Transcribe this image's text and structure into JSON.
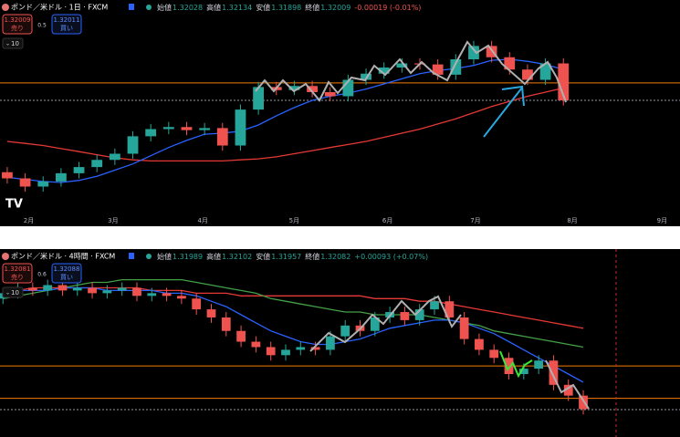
{
  "chart_data": [
    {
      "type": "candlestick",
      "title": "ポンド／米ドル · 1日 · FXCM",
      "quote": [
        {
          "label": "始値",
          "value": "1.32028"
        },
        {
          "label": "高値",
          "value": "1.32134"
        },
        {
          "label": "安値",
          "value": "1.31898"
        },
        {
          "label": "終値",
          "value": "1.32009"
        }
      ],
      "change": "-0.00019 (-0.01%)",
      "quote_color": "#26a69a",
      "change_color": "#ef5350",
      "sell": {
        "price": "1.32009",
        "label": "売り"
      },
      "spread": "0.5",
      "buy": {
        "price": "1.32011",
        "label": "買い"
      },
      "quantity": "10",
      "open": [
        1.25,
        1.244,
        1.236,
        1.241,
        1.249,
        1.255,
        1.262,
        1.268,
        1.285,
        1.292,
        1.294,
        1.291,
        1.293,
        1.276,
        1.311,
        1.333,
        1.33,
        1.334,
        1.328,
        1.324,
        1.34,
        1.346,
        1.352,
        1.356,
        1.355,
        1.345,
        1.36,
        1.373,
        1.362,
        1.35,
        1.34,
        1.356
      ],
      "high": [
        1.255,
        1.249,
        1.246,
        1.254,
        1.26,
        1.267,
        1.273,
        1.29,
        1.297,
        1.299,
        1.299,
        1.298,
        1.298,
        1.316,
        1.338,
        1.338,
        1.339,
        1.339,
        1.333,
        1.345,
        1.351,
        1.357,
        1.361,
        1.361,
        1.36,
        1.365,
        1.378,
        1.378,
        1.367,
        1.355,
        1.361,
        1.361
      ],
      "low": [
        1.239,
        1.231,
        1.231,
        1.236,
        1.244,
        1.25,
        1.257,
        1.263,
        1.28,
        1.287,
        1.286,
        1.286,
        1.271,
        1.271,
        1.306,
        1.325,
        1.325,
        1.323,
        1.319,
        1.319,
        1.335,
        1.341,
        1.347,
        1.35,
        1.34,
        1.34,
        1.355,
        1.357,
        1.345,
        1.335,
        1.335,
        1.315
      ],
      "close": [
        1.244,
        1.236,
        1.241,
        1.249,
        1.255,
        1.262,
        1.268,
        1.285,
        1.292,
        1.294,
        1.291,
        1.293,
        1.276,
        1.311,
        1.333,
        1.33,
        1.334,
        1.328,
        1.324,
        1.34,
        1.346,
        1.352,
        1.356,
        1.355,
        1.345,
        1.36,
        1.373,
        1.362,
        1.35,
        1.34,
        1.356,
        1.32
      ],
      "up_color": "#26a69a",
      "down_color": "#ef5350",
      "lines": [
        {
          "color": "#e53935",
          "values": [
            1.28,
            1.278,
            1.276,
            1.273,
            1.27,
            1.267,
            1.264,
            1.262,
            1.261,
            1.261,
            1.261,
            1.261,
            1.261,
            1.262,
            1.263,
            1.265,
            1.268,
            1.271,
            1.274,
            1.277,
            1.28,
            1.284,
            1.288,
            1.292,
            1.297,
            1.302,
            1.308,
            1.314,
            1.319,
            1.324,
            1.328,
            1.332
          ]
        },
        {
          "color": "#2962ff",
          "values": [
            1.245,
            1.243,
            1.241,
            1.24,
            1.242,
            1.246,
            1.252,
            1.258,
            1.266,
            1.274,
            1.281,
            1.287,
            1.288,
            1.29,
            1.296,
            1.305,
            1.313,
            1.32,
            1.324,
            1.327,
            1.331,
            1.336,
            1.341,
            1.346,
            1.349,
            1.351,
            1.354,
            1.359,
            1.36,
            1.358,
            1.355,
            1.35
          ]
        }
      ],
      "hlines": [
        {
          "value": 1.337,
          "color": "#f57c00",
          "style": "solid"
        },
        {
          "value": 1.32,
          "color": "#9598a1",
          "style": "dotted"
        }
      ],
      "xlim": [
        -0.2,
        37.5
      ],
      "ylim": [
        1.2,
        1.4
      ],
      "xticks": [
        {
          "value": 1.2,
          "label": "2月"
        },
        {
          "value": 5.9,
          "label": "3月"
        },
        {
          "value": 10.9,
          "label": "4月"
        },
        {
          "value": 16.0,
          "label": "5月"
        },
        {
          "value": 21.2,
          "label": "6月"
        },
        {
          "value": 26.1,
          "label": "7月"
        },
        {
          "value": 31.5,
          "label": "8月"
        },
        {
          "value": 36.5,
          "label": "9月"
        }
      ]
    },
    {
      "type": "candlestick",
      "title": "ポンド／米ドル · 4時間 · FXCM",
      "quote": [
        {
          "label": "始値",
          "value": "1.31989"
        },
        {
          "label": "高値",
          "value": "1.32102"
        },
        {
          "label": "安値",
          "value": "1.31957"
        },
        {
          "label": "終値",
          "value": "1.32082"
        }
      ],
      "change": "+0.00093 (+0.07%)",
      "quote_color": "#26a69a",
      "change_color": "#26a69a",
      "sell": {
        "price": "1.32081",
        "label": "売り"
      },
      "spread": "0.6",
      "buy": {
        "price": "1.32088",
        "label": "買い"
      },
      "quantity": "10",
      "open": [
        1.362,
        1.364,
        1.366,
        1.365,
        1.367,
        1.365,
        1.366,
        1.364,
        1.365,
        1.366,
        1.363,
        1.364,
        1.363,
        1.362,
        1.358,
        1.355,
        1.35,
        1.346,
        1.344,
        1.341,
        1.343,
        1.344,
        1.343,
        1.348,
        1.352,
        1.35,
        1.355,
        1.357,
        1.354,
        1.358,
        1.361,
        1.355,
        1.347,
        1.343,
        1.34,
        1.334,
        1.336,
        1.339,
        1.33,
        1.326
      ],
      "high": [
        1.366,
        1.368,
        1.368,
        1.369,
        1.369,
        1.368,
        1.368,
        1.367,
        1.368,
        1.368,
        1.366,
        1.366,
        1.365,
        1.364,
        1.36,
        1.357,
        1.352,
        1.348,
        1.346,
        1.345,
        1.346,
        1.346,
        1.35,
        1.354,
        1.354,
        1.357,
        1.359,
        1.359,
        1.36,
        1.363,
        1.363,
        1.357,
        1.349,
        1.345,
        1.342,
        1.338,
        1.341,
        1.341,
        1.332,
        1.328
      ],
      "low": [
        1.36,
        1.362,
        1.363,
        1.363,
        1.363,
        1.363,
        1.362,
        1.362,
        1.363,
        1.361,
        1.361,
        1.361,
        1.36,
        1.356,
        1.353,
        1.348,
        1.344,
        1.342,
        1.339,
        1.339,
        1.341,
        1.341,
        1.341,
        1.346,
        1.348,
        1.348,
        1.353,
        1.352,
        1.352,
        1.356,
        1.353,
        1.345,
        1.341,
        1.338,
        1.332,
        1.332,
        1.334,
        1.328,
        1.324,
        1.319
      ],
      "close": [
        1.364,
        1.366,
        1.365,
        1.367,
        1.365,
        1.366,
        1.364,
        1.365,
        1.366,
        1.363,
        1.364,
        1.363,
        1.362,
        1.358,
        1.355,
        1.35,
        1.346,
        1.344,
        1.341,
        1.343,
        1.344,
        1.343,
        1.348,
        1.352,
        1.35,
        1.355,
        1.357,
        1.354,
        1.358,
        1.361,
        1.355,
        1.347,
        1.343,
        1.34,
        1.334,
        1.336,
        1.339,
        1.33,
        1.326,
        1.321
      ],
      "up_color": "#26a69a",
      "down_color": "#ef5350",
      "lines": [
        {
          "color": "#e53935",
          "values": [
            1.365,
            1.365,
            1.366,
            1.366,
            1.366,
            1.366,
            1.366,
            1.366,
            1.366,
            1.366,
            1.365,
            1.365,
            1.365,
            1.364,
            1.364,
            1.364,
            1.363,
            1.363,
            1.363,
            1.363,
            1.363,
            1.363,
            1.363,
            1.363,
            1.363,
            1.362,
            1.362,
            1.362,
            1.361,
            1.361,
            1.36,
            1.359,
            1.358,
            1.357,
            1.356,
            1.355,
            1.354,
            1.353,
            1.352,
            1.351
          ]
        },
        {
          "color": "#43a047",
          "values": [
            1.362,
            1.363,
            1.364,
            1.365,
            1.366,
            1.367,
            1.368,
            1.368,
            1.369,
            1.369,
            1.369,
            1.369,
            1.369,
            1.368,
            1.367,
            1.366,
            1.365,
            1.364,
            1.362,
            1.361,
            1.36,
            1.359,
            1.358,
            1.357,
            1.357,
            1.356,
            1.356,
            1.356,
            1.356,
            1.355,
            1.354,
            1.353,
            1.352,
            1.35,
            1.349,
            1.348,
            1.347,
            1.346,
            1.345,
            1.344
          ]
        },
        {
          "color": "#2962ff",
          "values": [
            1.365,
            1.365,
            1.365,
            1.365,
            1.366,
            1.366,
            1.366,
            1.365,
            1.365,
            1.365,
            1.365,
            1.364,
            1.364,
            1.363,
            1.361,
            1.359,
            1.356,
            1.353,
            1.35,
            1.348,
            1.346,
            1.345,
            1.345,
            1.346,
            1.347,
            1.349,
            1.351,
            1.352,
            1.353,
            1.354,
            1.354,
            1.353,
            1.351,
            1.349,
            1.346,
            1.343,
            1.34,
            1.337,
            1.334,
            1.331
          ]
        }
      ],
      "hlines": [
        {
          "value": 1.337,
          "color": "#f57c00",
          "style": "solid"
        },
        {
          "value": 1.325,
          "color": "#f57c00",
          "style": "solid"
        },
        {
          "value": 1.3208,
          "color": "#9598a1",
          "style": "dotted"
        }
      ],
      "xlim": [
        -0.2,
        45.5
      ],
      "ylim": [
        1.312,
        1.378
      ]
    }
  ]
}
